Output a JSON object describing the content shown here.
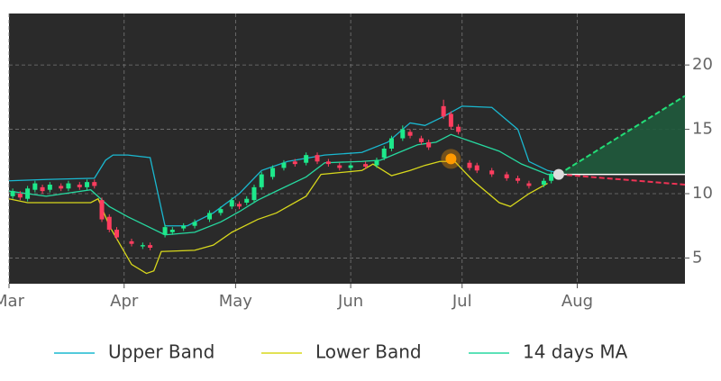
{
  "chart_data": {
    "type": "candlestick",
    "xlim": [
      0,
      182
    ],
    "xticks": [
      {
        "value": 0,
        "label": "Mar"
      },
      {
        "value": 31,
        "label": "Apr"
      },
      {
        "value": 61,
        "label": "May"
      },
      {
        "value": 92,
        "label": "Jun"
      },
      {
        "value": 122,
        "label": "Jul"
      },
      {
        "value": 153,
        "label": "Aug"
      }
    ],
    "ylim": [
      3,
      24
    ],
    "yticks": [
      5,
      10,
      15,
      20
    ],
    "grid": true,
    "up_color": "#1de98b",
    "down_color": "#ff3d5f",
    "candles": {
      "x": [
        1,
        3,
        5,
        7,
        9,
        11,
        14,
        16,
        19,
        21,
        23,
        25,
        27,
        29,
        33,
        36,
        38,
        42,
        44,
        47,
        50,
        54,
        57,
        60,
        62,
        64,
        66,
        68,
        71,
        74,
        77,
        80,
        83,
        86,
        89,
        92,
        96,
        99,
        101,
        103,
        106,
        108,
        111,
        113,
        117,
        119,
        121,
        124,
        126,
        130,
        134,
        137,
        140,
        144,
        146
      ],
      "open": [
        9.8,
        10.0,
        9.6,
        10.3,
        10.5,
        10.3,
        10.6,
        10.4,
        10.7,
        10.5,
        10.9,
        9.5,
        8.2,
        7.2,
        6.3,
        5.9,
        6.0,
        6.8,
        7.0,
        7.3,
        7.5,
        8.0,
        8.5,
        9.0,
        9.2,
        9.3,
        9.5,
        10.5,
        11.3,
        12.0,
        12.5,
        12.4,
        13.0,
        12.5,
        12.2,
        12.0,
        12.3,
        12.2,
        12.8,
        13.5,
        14.3,
        14.8,
        14.3,
        14.0,
        16.8,
        16.2,
        15.2,
        12.4,
        12.2,
        11.8,
        11.5,
        11.2,
        10.8,
        10.7,
        11.0
      ],
      "high": [
        10.4,
        10.2,
        10.6,
        11.0,
        10.7,
        10.9,
        10.8,
        11.0,
        10.9,
        11.1,
        11.1,
        9.7,
        8.4,
        7.4,
        6.5,
        6.2,
        6.2,
        7.6,
        7.4,
        7.7,
        8.0,
        8.7,
        9.0,
        9.7,
        9.4,
        9.8,
        10.7,
        11.7,
        12.2,
        12.6,
        12.7,
        13.2,
        13.2,
        12.7,
        12.4,
        12.4,
        12.5,
        12.8,
        13.7,
        14.5,
        15.3,
        15.0,
        14.5,
        14.2,
        17.3,
        16.4,
        15.4,
        12.6,
        12.4,
        12.0,
        11.7,
        11.4,
        11.0,
        11.2,
        11.7
      ],
      "low": [
        9.6,
        9.5,
        9.4,
        10.1,
        10.0,
        10.1,
        10.2,
        10.2,
        10.3,
        10.3,
        10.4,
        7.8,
        7.0,
        6.4,
        5.9,
        5.7,
        5.6,
        6.6,
        6.8,
        7.1,
        7.3,
        7.8,
        8.3,
        8.8,
        8.8,
        9.1,
        9.3,
        10.3,
        11.1,
        11.8,
        12.1,
        12.2,
        12.3,
        12.1,
        11.8,
        11.8,
        11.9,
        12.0,
        12.6,
        13.3,
        14.1,
        14.3,
        13.8,
        13.4,
        15.8,
        15.0,
        14.6,
        11.8,
        11.6,
        11.3,
        11.0,
        10.8,
        10.4,
        10.5,
        10.8
      ],
      "close": [
        10.2,
        9.7,
        10.4,
        10.8,
        10.2,
        10.7,
        10.4,
        10.8,
        10.5,
        10.9,
        10.6,
        8.0,
        7.2,
        6.6,
        6.1,
        6.0,
        5.8,
        7.4,
        7.2,
        7.5,
        7.8,
        8.5,
        8.8,
        9.5,
        9.0,
        9.6,
        10.5,
        11.5,
        12.0,
        12.4,
        12.3,
        13.0,
        12.5,
        12.3,
        12.0,
        12.2,
        12.1,
        12.6,
        13.5,
        14.3,
        15.0,
        14.5,
        14.0,
        13.6,
        16.0,
        15.2,
        14.8,
        12.0,
        11.8,
        11.5,
        11.2,
        11.0,
        10.6,
        11.0,
        11.5
      ]
    },
    "series": [
      {
        "name": "Upper Band",
        "color": "#1ab8d0",
        "x": [
          0,
          10,
          23,
          26,
          28,
          32,
          38,
          42,
          48,
          55,
          62,
          68,
          75,
          85,
          95,
          102,
          108,
          112,
          117,
          122,
          130,
          137,
          140,
          145,
          148
        ],
        "values": [
          11.0,
          11.1,
          11.2,
          12.6,
          13.0,
          13.0,
          12.8,
          7.5,
          7.5,
          8.5,
          10.0,
          11.8,
          12.5,
          13.0,
          13.2,
          14.0,
          15.5,
          15.3,
          16.0,
          16.8,
          16.7,
          15.0,
          12.5,
          11.8,
          11.6
        ]
      },
      {
        "name": "Lower Band",
        "color": "#d8d81c",
        "x": [
          0,
          5,
          22,
          24,
          27,
          30,
          33,
          37,
          39,
          41,
          50,
          55,
          60,
          67,
          72,
          80,
          84,
          95,
          98,
          103,
          108,
          112,
          116,
          120,
          125,
          132,
          135,
          140,
          145
        ],
        "values": [
          9.6,
          9.3,
          9.3,
          9.6,
          7.5,
          6.0,
          4.5,
          3.8,
          4.0,
          5.5,
          5.6,
          6.0,
          7.0,
          8.0,
          8.5,
          9.8,
          11.5,
          11.8,
          12.3,
          11.4,
          11.8,
          12.2,
          12.5,
          12.5,
          11.0,
          9.3,
          9.0,
          10.0,
          10.8
        ]
      },
      {
        "name": "14 days MA",
        "color": "#26d9a0",
        "x": [
          0,
          10,
          22,
          27,
          32,
          37,
          42,
          50,
          57,
          62,
          67,
          72,
          80,
          85,
          95,
          100,
          105,
          110,
          115,
          119,
          125,
          132,
          138,
          145,
          148
        ],
        "values": [
          10.2,
          9.8,
          10.3,
          9.0,
          8.2,
          7.5,
          6.8,
          7.0,
          7.8,
          8.6,
          9.5,
          10.2,
          11.3,
          12.4,
          12.5,
          12.6,
          13.2,
          13.8,
          14.0,
          14.6,
          14.0,
          13.3,
          12.3,
          11.5,
          11.5
        ]
      }
    ],
    "projection": {
      "x": [
        148,
        182
      ],
      "upper": [
        11.5,
        17.6
      ],
      "lower": [
        11.5,
        10.7
      ],
      "level": 11.5,
      "up_color": "#22dd77",
      "down_color": "#ee3355",
      "fill": "#1f5a3c",
      "level_color": "#ffffff"
    },
    "markers": [
      {
        "x": 148,
        "y": 11.5,
        "color": "#dddddd"
      },
      {
        "x": 119,
        "y": 12.7,
        "color": "#ff9a00"
      }
    ]
  }
}
